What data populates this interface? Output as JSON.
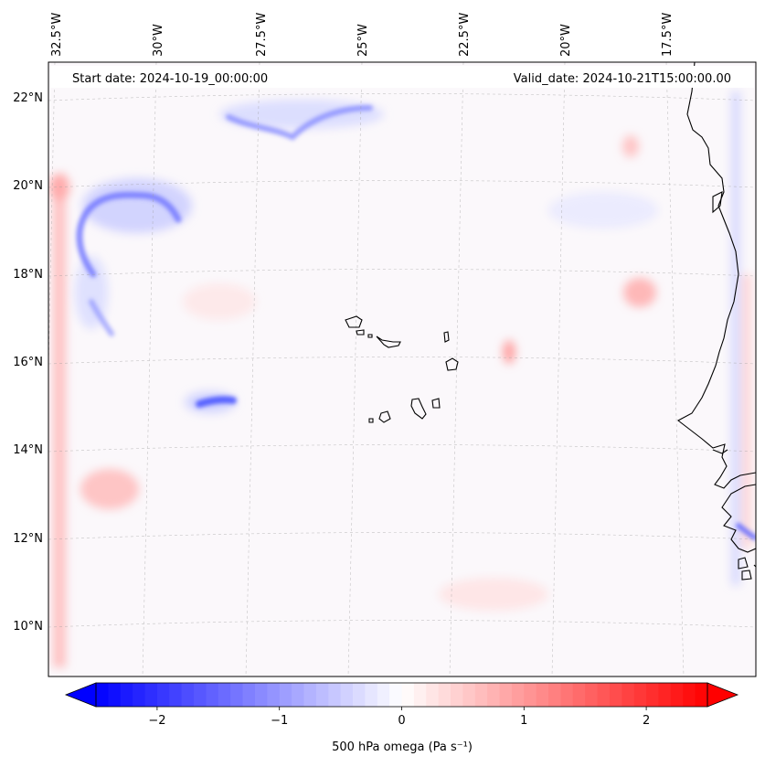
{
  "header": {
    "start_date": "Start date: 2024-10-19_00:00:00",
    "valid_date": "Valid_date: 2024-10-21T15:00:00.00"
  },
  "map": {
    "lon_labels": [
      "32.5°W",
      "30°W",
      "27.5°W",
      "25°W",
      "22.5°W",
      "20°W",
      "17.5°W"
    ],
    "lat_labels": [
      "22°N",
      "20°N",
      "18°N",
      "16°N",
      "14°N",
      "12°N",
      "10°N"
    ],
    "colors": {
      "negative": "#0000ff",
      "positive": "#ff0000",
      "neutral": "#ffffff"
    }
  },
  "colorbar": {
    "label": "500 hPa omega (Pa s⁻¹)",
    "ticks": [
      {
        "value": -2,
        "text": "−2"
      },
      {
        "value": -1,
        "text": "−1"
      },
      {
        "value": 0,
        "text": "0"
      },
      {
        "value": 1,
        "text": "1"
      },
      {
        "value": 2,
        "text": "2"
      }
    ],
    "range": [
      -2.75,
      2.75
    ]
  }
}
